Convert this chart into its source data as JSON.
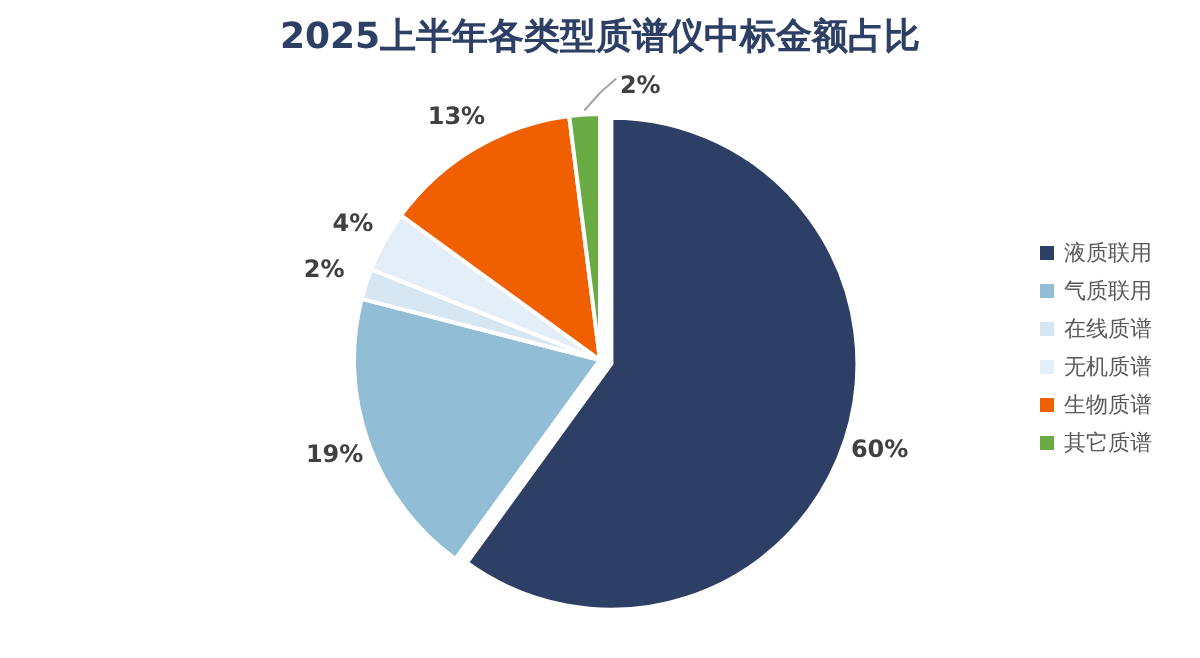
{
  "chart_data": {
    "type": "pie",
    "title": "2025上半年各类型质谱仪中标金额占比",
    "categories": [
      "液质联用",
      "气质联用",
      "在线质谱",
      "无机质谱",
      "生物质谱",
      "其它质谱"
    ],
    "values": [
      60,
      19,
      2,
      4,
      13,
      2
    ],
    "colors": [
      "#2e3f66",
      "#92bdd6",
      "#d6e6f3",
      "#e4eef8",
      "#f06000",
      "#6aab43"
    ],
    "value_labels": [
      "60%",
      "19%",
      "2%",
      "4%",
      "13%",
      "2%"
    ],
    "legend": "right"
  }
}
